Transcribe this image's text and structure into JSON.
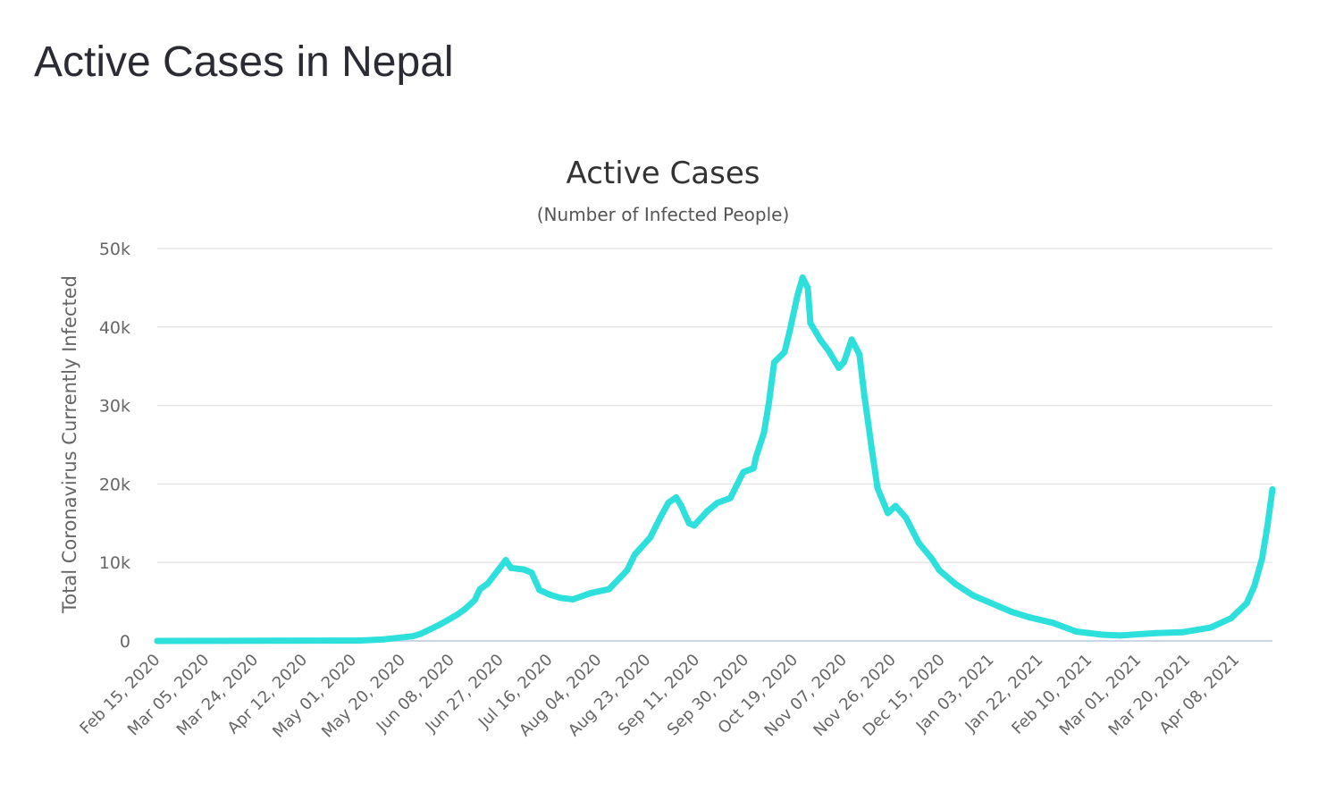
{
  "page": {
    "title": "Active Cases in Nepal"
  },
  "chart_data": {
    "type": "line",
    "title": "Active Cases",
    "subtitle": "(Number of Infected People)",
    "xlabel": "",
    "ylabel": "Total Coronavirus Currently Infected",
    "ylim": [
      0,
      50000
    ],
    "yticks": [
      "0",
      "10k",
      "20k",
      "30k",
      "40k",
      "50k"
    ],
    "xlim": [
      "2020-02-15",
      "2021-04-22"
    ],
    "xticks": [
      "Feb 15, 2020",
      "Mar 05, 2020",
      "Mar 24, 2020",
      "Apr 12, 2020",
      "May 01, 2020",
      "May 20, 2020",
      "Jun 08, 2020",
      "Jun 27, 2020",
      "Jul 16, 2020",
      "Aug 04, 2020",
      "Aug 23, 2020",
      "Sep 11, 2020",
      "Sep 30, 2020",
      "Oct 19, 2020",
      "Nov 07, 2020",
      "Nov 26, 2020",
      "Dec 15, 2020",
      "Jan 03, 2021",
      "Jan 22, 2021",
      "Feb 10, 2021",
      "Mar 01, 2021",
      "Mar 20, 2021",
      "Apr 08, 2021"
    ],
    "grid": true,
    "legend": "none",
    "color": "#2ee0dc",
    "x": [
      "2020-02-15",
      "2020-04-01",
      "2020-05-03",
      "2020-05-13",
      "2020-05-24",
      "2020-05-27",
      "2020-06-03",
      "2020-06-10",
      "2020-06-13",
      "2020-06-17",
      "2020-06-19",
      "2020-06-22",
      "2020-06-26",
      "2020-06-29",
      "2020-07-01",
      "2020-07-06",
      "2020-07-09",
      "2020-07-12",
      "2020-07-16",
      "2020-07-20",
      "2020-07-25",
      "2020-08-01",
      "2020-08-08",
      "2020-08-15",
      "2020-08-18",
      "2020-08-24",
      "2020-08-28",
      "2020-08-31",
      "2020-09-03",
      "2020-09-05",
      "2020-09-08",
      "2020-09-10",
      "2020-09-15",
      "2020-09-19",
      "2020-09-24",
      "2020-09-29",
      "2020-10-03",
      "2020-10-04",
      "2020-10-07",
      "2020-10-09",
      "2020-10-11",
      "2020-10-15",
      "2020-10-17",
      "2020-10-20",
      "2020-10-22",
      "2020-10-24",
      "2020-10-25",
      "2020-10-29",
      "2020-11-01",
      "2020-11-05",
      "2020-11-07",
      "2020-11-10",
      "2020-11-13",
      "2020-11-15",
      "2020-11-18",
      "2020-11-20",
      "2020-11-24",
      "2020-11-27",
      "2020-12-01",
      "2020-12-06",
      "2020-12-11",
      "2020-12-14",
      "2020-12-20",
      "2020-12-27",
      "2021-01-01",
      "2021-01-06",
      "2021-01-11",
      "2021-01-18",
      "2021-01-27",
      "2021-02-05",
      "2021-02-15",
      "2021-02-22",
      "2021-03-08",
      "2021-03-18",
      "2021-03-29",
      "2021-04-06",
      "2021-04-12",
      "2021-04-15",
      "2021-04-18",
      "2021-04-20",
      "2021-04-22"
    ],
    "y": [
      1,
      30,
      50,
      200,
      600,
      900,
      2000,
      3300,
      4000,
      5200,
      6600,
      7300,
      9000,
      10300,
      9300,
      9100,
      8700,
      6500,
      5900,
      5500,
      5300,
      6100,
      6600,
      9000,
      11000,
      13200,
      15800,
      17600,
      18300,
      17200,
      15000,
      14700,
      16500,
      17600,
      18200,
      21500,
      22000,
      23500,
      26500,
      30500,
      35500,
      36800,
      39500,
      44000,
      46300,
      45000,
      40500,
      38300,
      37000,
      34800,
      35500,
      38400,
      36500,
      31000,
      24000,
      19500,
      16300,
      17200,
      15700,
      12500,
      10500,
      9000,
      7300,
      5800,
      5100,
      4400,
      3700,
      3000,
      2300,
      1200,
      800,
      700,
      1000,
      1100,
      1700,
      2900,
      4800,
      7000,
      10500,
      14500,
      19300
    ]
  }
}
